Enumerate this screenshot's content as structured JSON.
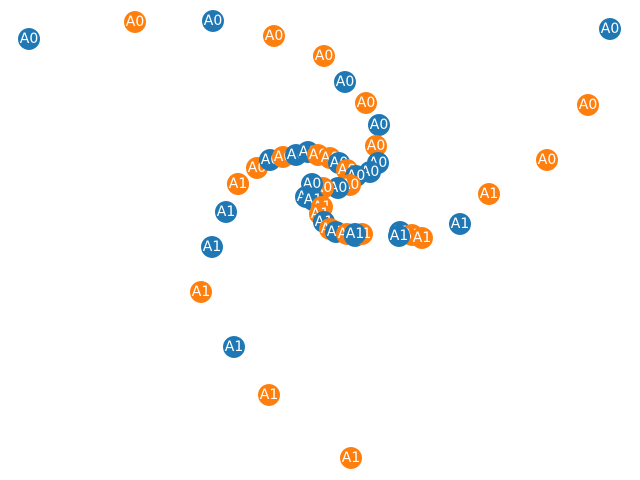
{
  "colors": {
    "blue": "#1f77b4",
    "orange": "#ff7f0e",
    "label": "#ffffff",
    "background": "#ffffff"
  },
  "nodes": [
    {
      "label": "A0",
      "series": "blue"
    },
    {
      "label": "A0",
      "series": "orange"
    },
    {
      "label": "A0",
      "series": "blue"
    },
    {
      "label": "A0",
      "series": "orange"
    },
    {
      "label": "A0",
      "series": "orange"
    },
    {
      "label": "A0",
      "series": "blue"
    },
    {
      "label": "A0",
      "series": "blue"
    },
    {
      "label": "A0",
      "series": "orange"
    },
    {
      "label": "A0",
      "series": "orange"
    },
    {
      "label": "A0",
      "series": "blue"
    },
    {
      "label": "A0",
      "series": "orange"
    },
    {
      "label": "A0",
      "series": "orange"
    },
    {
      "label": "A0",
      "series": "blue"
    },
    {
      "label": "A0",
      "series": "blue"
    },
    {
      "label": "A0",
      "series": "orange"
    },
    {
      "label": "A0",
      "series": "blue"
    },
    {
      "label": "A0",
      "series": "orange"
    },
    {
      "label": "A0",
      "series": "blue"
    },
    {
      "label": "A0",
      "series": "blue"
    },
    {
      "label": "A0",
      "series": "orange"
    },
    {
      "label": "A0",
      "series": "orange"
    },
    {
      "label": "A0",
      "series": "blue"
    },
    {
      "label": "A0",
      "series": "orange"
    },
    {
      "label": "A0",
      "series": "blue"
    },
    {
      "label": "A0",
      "series": "orange"
    },
    {
      "label": "A0",
      "series": "blue"
    },
    {
      "label": "A0",
      "series": "orange"
    },
    {
      "label": "A0",
      "series": "blue"
    },
    {
      "label": "A1",
      "series": "orange"
    },
    {
      "label": "A1",
      "series": "blue"
    },
    {
      "label": "A1",
      "series": "blue"
    },
    {
      "label": "A1",
      "series": "orange"
    },
    {
      "label": "A1",
      "series": "orange"
    },
    {
      "label": "A1",
      "series": "blue"
    },
    {
      "label": "A1",
      "series": "orange"
    },
    {
      "label": "A1",
      "series": "blue"
    },
    {
      "label": "A1",
      "series": "orange"
    },
    {
      "label": "A1",
      "series": "blue"
    },
    {
      "label": "A1",
      "series": "orange"
    },
    {
      "label": "A1",
      "series": "blue"
    },
    {
      "label": "A1",
      "series": "orange"
    },
    {
      "label": "A1",
      "series": "blue"
    },
    {
      "label": "A1",
      "series": "orange"
    },
    {
      "label": "A1",
      "series": "blue"
    },
    {
      "label": "A1",
      "series": "orange"
    },
    {
      "label": "A1",
      "series": "blue"
    },
    {
      "label": "A1",
      "series": "orange"
    },
    {
      "label": "A1",
      "series": "orange"
    },
    {
      "label": "A1",
      "series": "blue"
    },
    {
      "label": "A1",
      "series": "orange"
    },
    {
      "label": "A1",
      "series": "blue"
    },
    {
      "label": "A1",
      "series": "orange"
    },
    {
      "label": "A1",
      "series": "blue"
    }
  ]
}
